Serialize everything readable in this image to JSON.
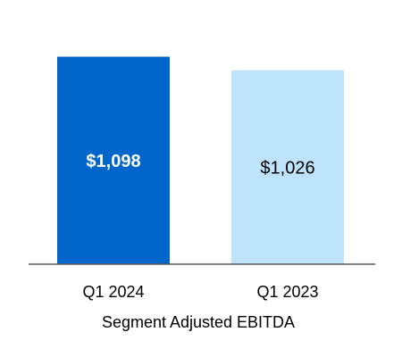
{
  "chart_data": {
    "type": "bar",
    "categories": [
      "Q1 2024",
      "Q1 2023"
    ],
    "values": [
      1098,
      1026
    ],
    "data_labels": [
      "$1,098",
      "$1,026"
    ],
    "bar_colors": [
      "#0066cc",
      "#bfe3fb"
    ],
    "label_colors": [
      "#ffffff",
      "#000000"
    ],
    "label_bold": [
      true,
      false
    ],
    "title": "",
    "xlabel": "Segment Adjusted EBITDA",
    "ylabel": "",
    "ylim": [
      0,
      1398
    ],
    "grid": false,
    "legend": "none",
    "axis_color": "#595959"
  }
}
